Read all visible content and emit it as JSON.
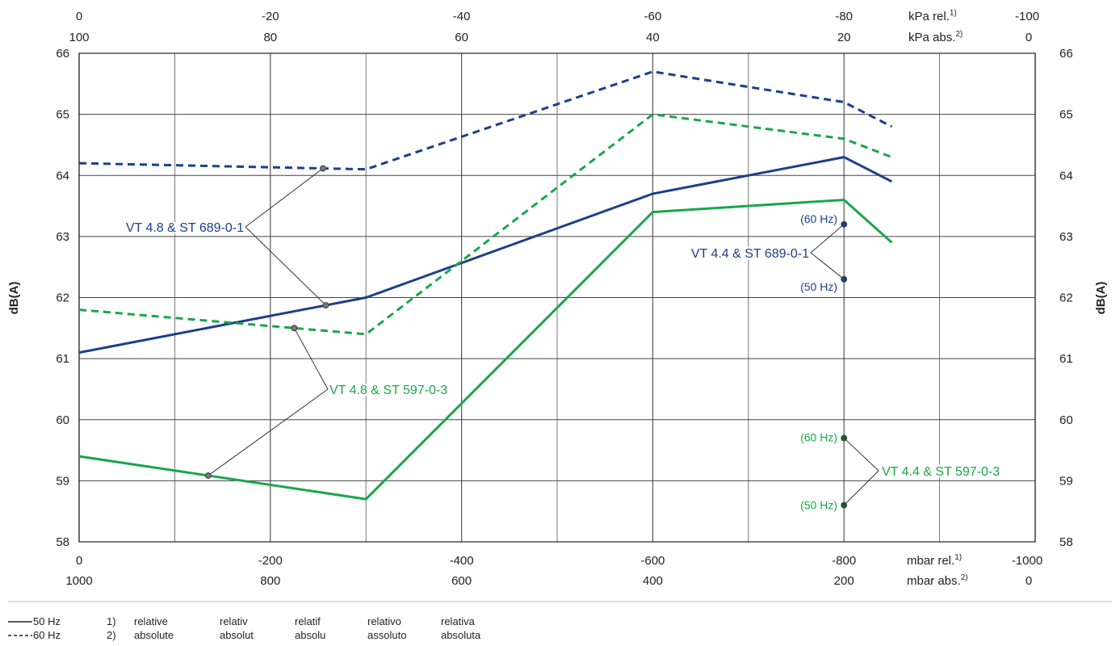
{
  "chart_data": {
    "type": "line",
    "xlim": [
      0,
      -1000
    ],
    "ylim": [
      58,
      66
    ],
    "ylabel": "dB(A)",
    "x_ticks_bottom_rel": [
      "0",
      "-200",
      "-400",
      "-600",
      "-800",
      "-1000"
    ],
    "x_ticks_bottom_rel_values": [
      0,
      -200,
      -400,
      -600,
      -800,
      -1000
    ],
    "x_ticks_bottom_abs": [
      "1000",
      "800",
      "600",
      "400",
      "200",
      "0"
    ],
    "x_ticks_top_rel": [
      "0",
      "-20",
      "-40",
      "-60",
      "-80",
      "-100"
    ],
    "x_ticks_top_abs": [
      "100",
      "80",
      "60",
      "40",
      "20",
      "0"
    ],
    "y_ticks": [
      "58",
      "59",
      "60",
      "61",
      "62",
      "63",
      "64",
      "65",
      "66"
    ],
    "unit_labels": {
      "kpa_rel": "kPa rel.",
      "kpa_abs": "kPa abs.",
      "mbar_rel": "mbar rel.",
      "mbar_abs": "mbar abs.",
      "note_rel": "1)",
      "note_abs": "2)"
    },
    "grid": true,
    "series": [
      {
        "name": "VT 4.8 & ST 689-0-1",
        "frequency": "60 Hz",
        "color": "#1b3f8b",
        "dash": true,
        "x": [
          0,
          -300,
          -600,
          -800,
          -850
        ],
        "y": [
          64.2,
          64.1,
          65.7,
          65.2,
          64.8
        ]
      },
      {
        "name": "VT 4.8 & ST 689-0-1",
        "frequency": "50 Hz",
        "color": "#1b3f8b",
        "dash": false,
        "x": [
          0,
          -300,
          -600,
          -800,
          -850
        ],
        "y": [
          61.1,
          62.0,
          63.7,
          64.3,
          63.9
        ]
      },
      {
        "name": "VT 4.8 & ST 597-0-3",
        "frequency": "60 Hz",
        "color": "#1aa64a",
        "dash": true,
        "x": [
          0,
          -300,
          -600,
          -800,
          -850
        ],
        "y": [
          61.8,
          61.4,
          65.0,
          64.6,
          64.3
        ]
      },
      {
        "name": "VT 4.8 & ST 597-0-3",
        "frequency": "50 Hz",
        "color": "#1aa64a",
        "dash": false,
        "x": [
          0,
          -300,
          -600,
          -800,
          -850
        ],
        "y": [
          59.4,
          58.7,
          63.4,
          63.6,
          62.9
        ]
      }
    ],
    "points": [
      {
        "name": "VT 4.4 & ST 689-0-1",
        "label": "(60 Hz)",
        "x": -800,
        "y": 63.2,
        "color": "#1b3f8b"
      },
      {
        "name": "VT 4.4 & ST 689-0-1",
        "label": "(50 Hz)",
        "x": -800,
        "y": 62.3,
        "color": "#1b3f8b"
      },
      {
        "name": "VT 4.4 & ST 597-0-3",
        "label": "(60 Hz)",
        "x": -800,
        "y": 59.7,
        "color": "#1aa64a"
      },
      {
        "name": "VT 4.4 & ST 597-0-3",
        "label": "(50 Hz)",
        "x": -800,
        "y": 58.6,
        "color": "#1aa64a"
      }
    ],
    "annotations": [
      {
        "text": "VT 4.8 & ST 689-0-1",
        "color": "#1b3f8b"
      },
      {
        "text": "VT 4.8 & ST 597-0-3",
        "color": "#1aa64a"
      },
      {
        "text": "VT 4.4 & ST 689-0-1",
        "color": "#1b3f8b"
      },
      {
        "text": "VT 4.4 & ST 597-0-3",
        "color": "#1aa64a"
      }
    ]
  },
  "legend": {
    "solid": "50 Hz",
    "dashed": "60 Hz"
  },
  "footnotes": {
    "row1": [
      "1)",
      "relative",
      "relativ",
      "relatif",
      "relativo",
      "relativa"
    ],
    "row2": [
      "2)",
      "absolute",
      "absolut",
      "absolu",
      "assoluto",
      "absoluta"
    ]
  }
}
